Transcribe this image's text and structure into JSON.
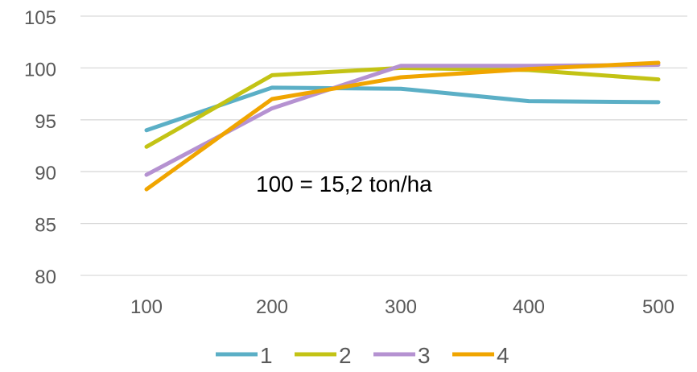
{
  "chart_data": {
    "type": "line",
    "x": [
      100,
      200,
      300,
      400,
      500
    ],
    "series": [
      {
        "name": "1",
        "color": "#5BAFC6",
        "values": [
          94.0,
          98.1,
          98.0,
          96.8,
          96.7
        ]
      },
      {
        "name": "2",
        "color": "#C3C315",
        "values": [
          92.4,
          99.3,
          100.0,
          99.8,
          98.9
        ]
      },
      {
        "name": "3",
        "color": "#B592D1",
        "values": [
          89.7,
          96.1,
          100.2,
          100.2,
          100.3
        ]
      },
      {
        "name": "4",
        "color": "#F0A500",
        "values": [
          88.3,
          97.0,
          99.1,
          99.9,
          100.5
        ]
      }
    ],
    "ylim": [
      80,
      105
    ],
    "yticks": [
      80,
      85,
      90,
      95,
      100,
      105
    ],
    "xlabel": "",
    "ylabel": "",
    "title": "",
    "grid": true,
    "legend_position": "bottom",
    "annotation": "100 = 15,2 ton/ha",
    "colors": {
      "grid": "#D9D9D9",
      "tick_text": "#595959",
      "annotation_text": "#000000"
    }
  }
}
